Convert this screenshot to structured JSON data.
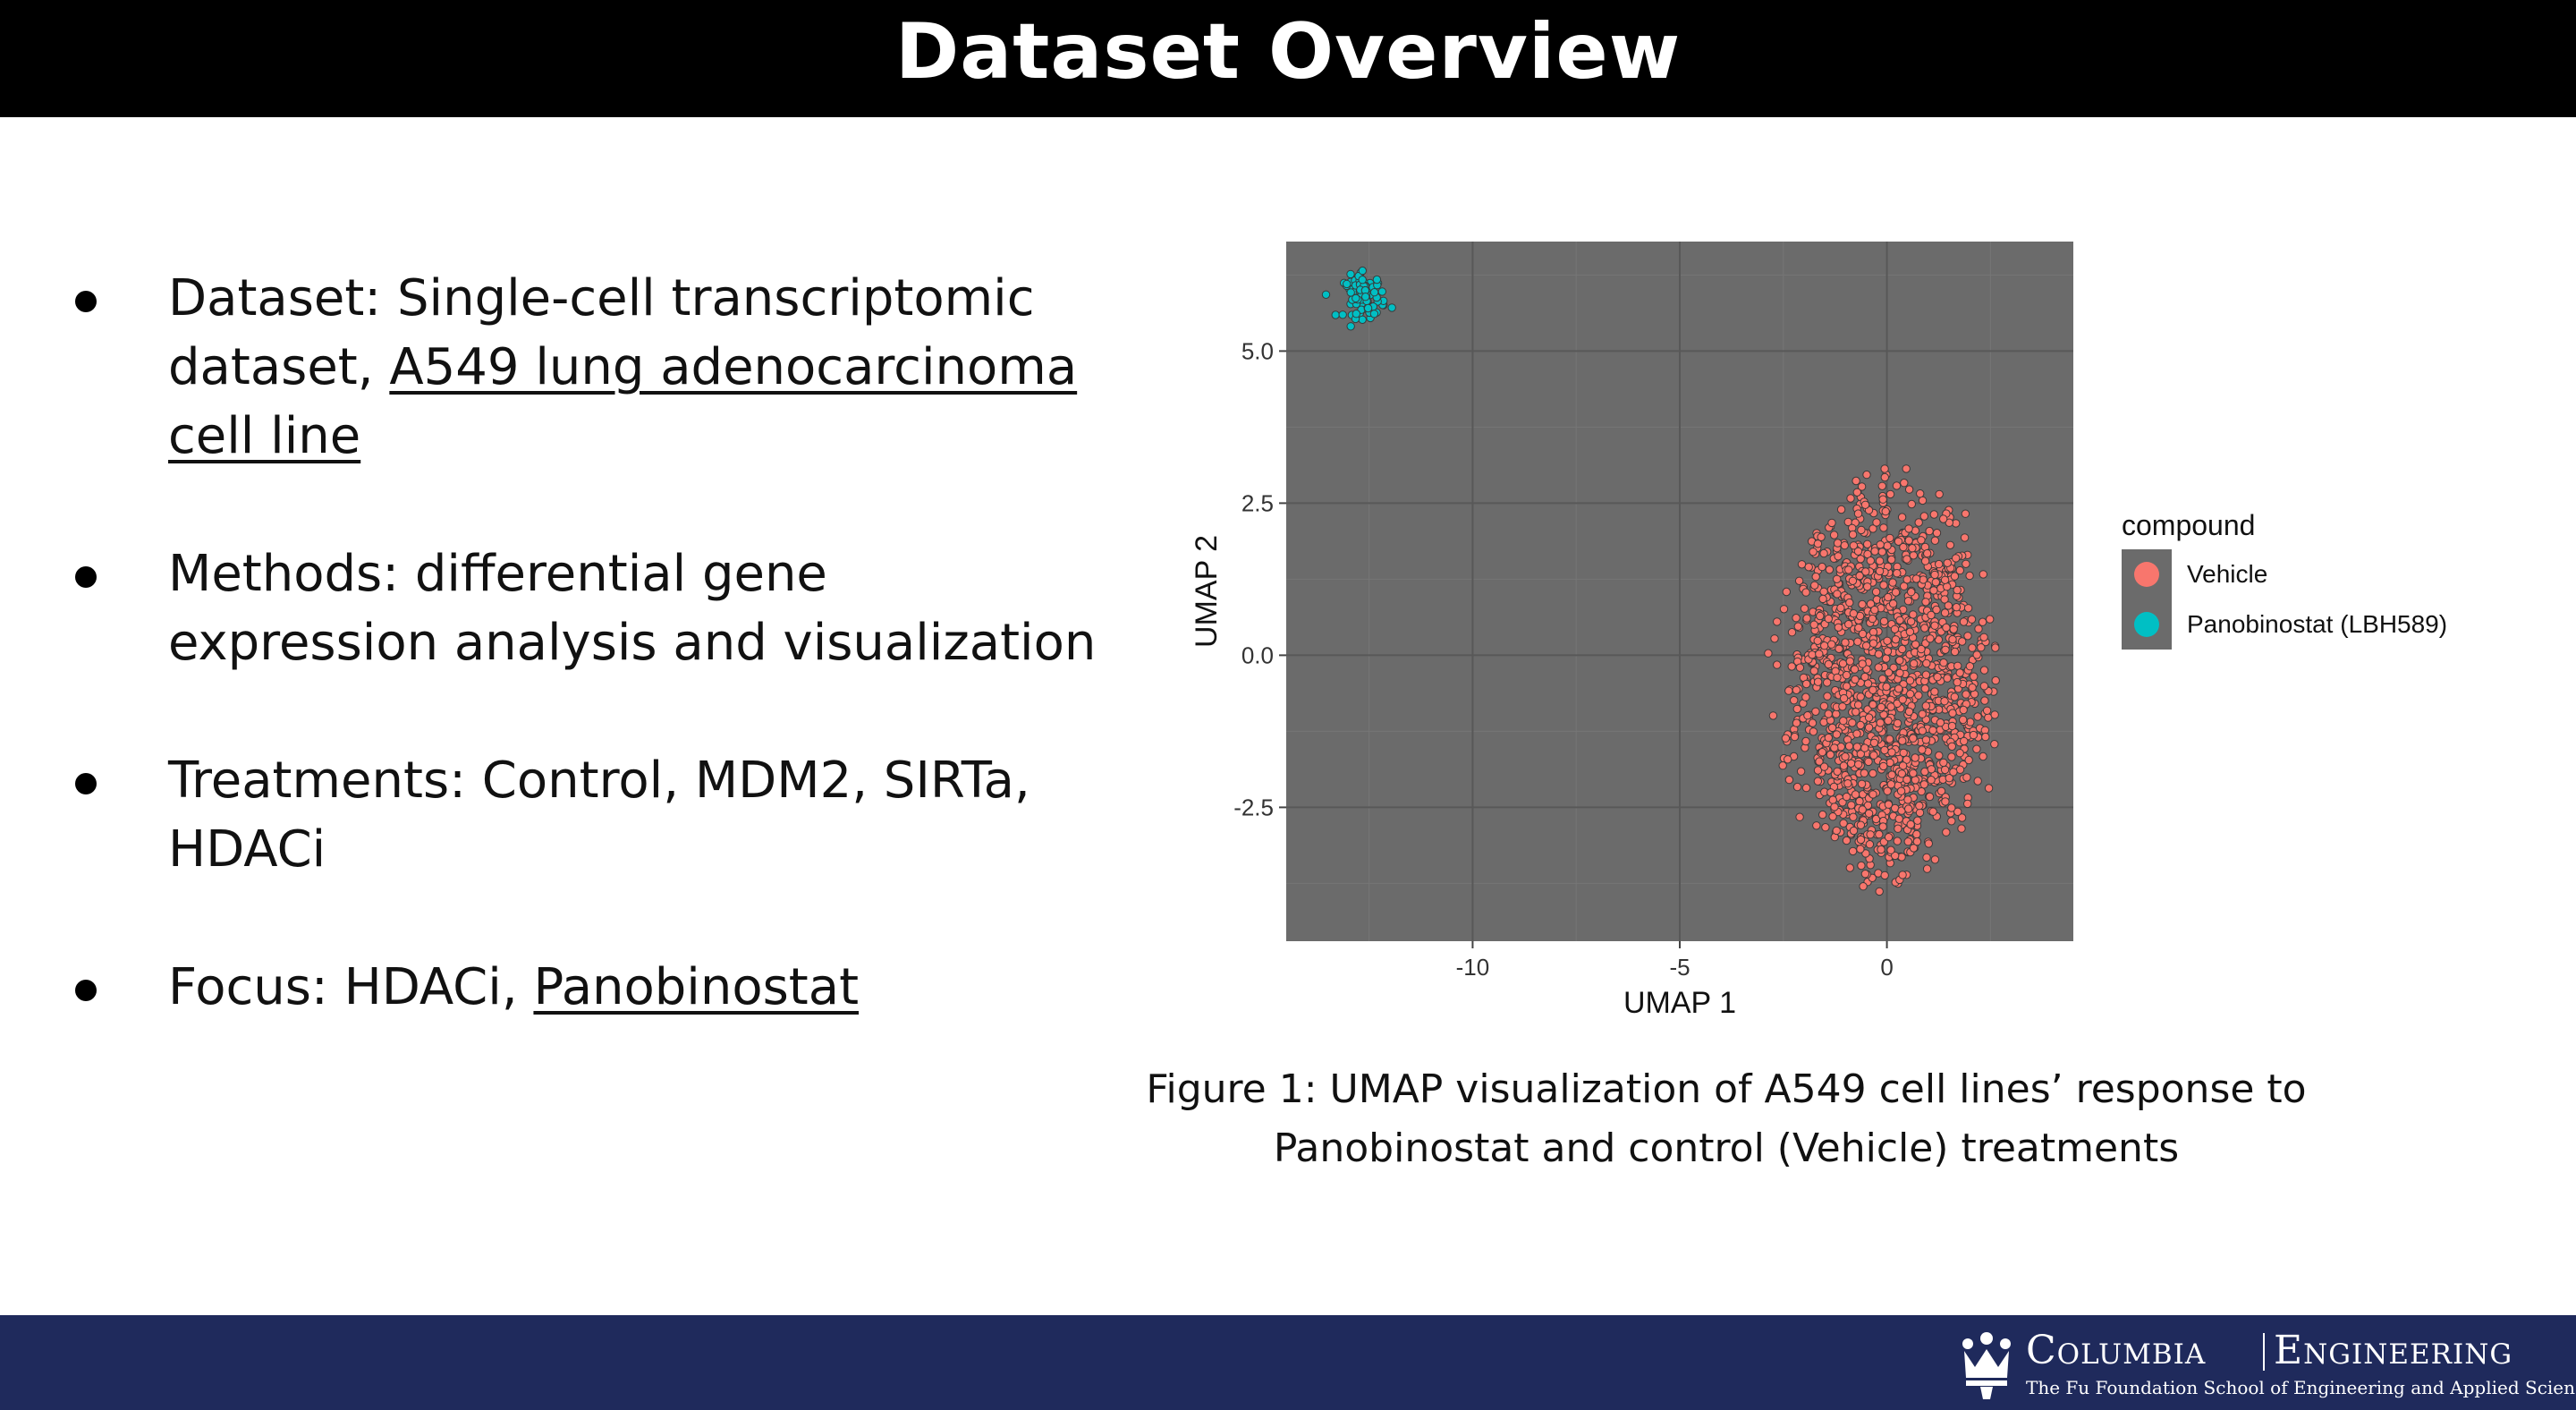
{
  "slide": {
    "title": "Dataset Overview",
    "bullets": [
      {
        "parts": [
          {
            "text": "Dataset: Single-cell transcriptomic dataset, ",
            "underline": false
          },
          {
            "text": "A549 lung adenocarcinoma cell line",
            "underline": true
          }
        ]
      },
      {
        "parts": [
          {
            "text": "Methods: differential gene expression analysis and visualization",
            "underline": false
          }
        ]
      },
      {
        "parts": [
          {
            "text": "Treatments: Control, MDM2, SIRTa, HDACi",
            "underline": false
          }
        ]
      },
      {
        "parts": [
          {
            "text": "Focus: HDACi, ",
            "underline": false
          },
          {
            "text": "Panobinostat",
            "underline": true
          }
        ]
      }
    ],
    "caption_line1": "Figure 1: UMAP visualization of A549 cell lines’ response to",
    "caption_line2": "Panobinostat and control (Vehicle) treatments",
    "logo": {
      "word1": "Columbia",
      "word2": "Engineering",
      "subtitle": "The Fu Foundation School of Engineering and Applied Science"
    }
  },
  "chart_data": {
    "type": "scatter",
    "xlabel": "UMAP 1",
    "ylabel": "UMAP 2",
    "xlim": [
      -14.5,
      4.5
    ],
    "ylim": [
      -4.7,
      6.8
    ],
    "xticks": [
      -10,
      -5,
      0
    ],
    "xtick_labels": [
      "-10",
      "-5",
      "0"
    ],
    "yticks": [
      -2.5,
      0.0,
      2.5,
      5.0
    ],
    "ytick_labels": [
      "-2.5",
      "0.0",
      "2.5",
      "5.0"
    ],
    "grid": true,
    "legend": {
      "title": "compound",
      "placement": "right"
    },
    "series": [
      {
        "name": "Vehicle",
        "color": "#F8766D",
        "center": [
          0.0,
          -0.4
        ],
        "spread": [
          3.0,
          3.7
        ],
        "n": 1400
      },
      {
        "name": "Panobinostat (LBH589)",
        "color": "#00BFC4",
        "center": [
          -12.6,
          5.9
        ],
        "spread": [
          0.5,
          0.35
        ],
        "n": 80
      }
    ],
    "panel_bg": "#6b6b6b"
  }
}
